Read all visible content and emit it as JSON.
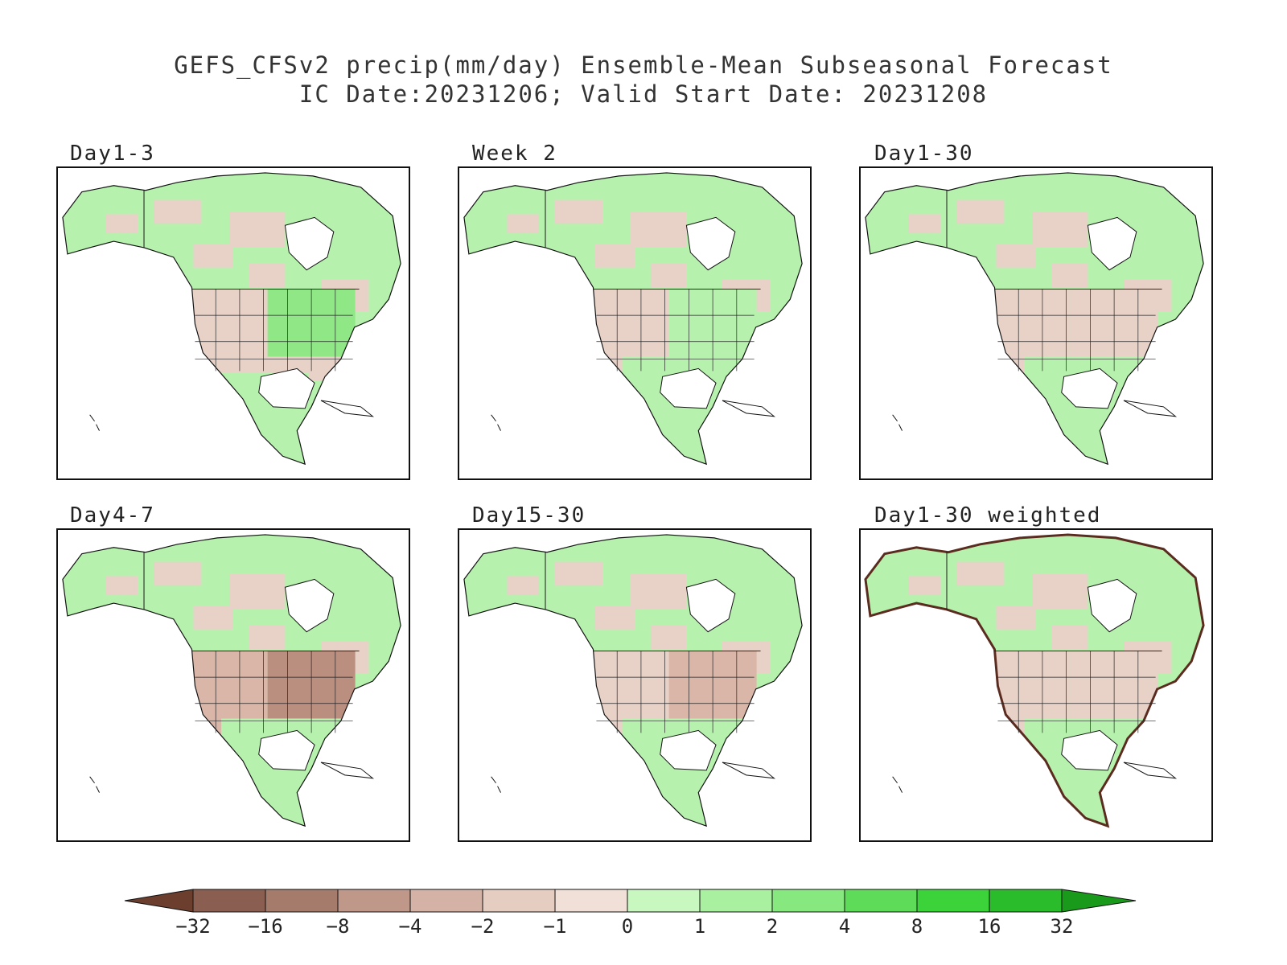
{
  "title": {
    "line1": "GEFS_CFSv2 precip(mm/day) Ensemble-Mean Subseasonal Forecast",
    "line2": "IC Date:20231206; Valid Start Date: 20231208"
  },
  "panels": [
    {
      "label": "Day1-3",
      "pattern": {
        "north": "mixed",
        "west": "brown",
        "east": "green-strong",
        "south": "brown",
        "mexico": "green"
      }
    },
    {
      "label": "Week 2",
      "pattern": {
        "north": "mixed",
        "west": "brown",
        "east": "mixed",
        "south": "green",
        "mexico": "green"
      }
    },
    {
      "label": "Day1-30",
      "pattern": {
        "north": "mixed",
        "west": "brown",
        "east": "brown",
        "south": "green",
        "mexico": "green"
      }
    },
    {
      "label": "Day4-7",
      "pattern": {
        "north": "mixed",
        "west": "brown-strong",
        "east": "brown-dark",
        "south": "green",
        "mexico": "green"
      }
    },
    {
      "label": "Day15-30",
      "pattern": {
        "north": "mixed",
        "west": "brown",
        "east": "brown-strong",
        "south": "green",
        "mexico": "green"
      }
    },
    {
      "label": "Day1-30 weighted",
      "pattern": {
        "north": "mixed",
        "west": "brown",
        "east": "brown",
        "south": "green",
        "mexico": "green",
        "coast_outline": true
      }
    }
  ],
  "colorbar": {
    "ticks": [
      "−32",
      "−16",
      "−8",
      "−4",
      "−2",
      "−1",
      "0",
      "1",
      "2",
      "4",
      "8",
      "16",
      "32"
    ],
    "colors": [
      "#6b3e2e",
      "#8a5e50",
      "#a57b6c",
      "#bf988a",
      "#d4b3a6",
      "#e6cdc2",
      "#f1e0d8",
      "#c9f7c0",
      "#a9f0a0",
      "#86e87e",
      "#5edb58",
      "#3cd23a",
      "#2bbc2b",
      "#1a9a1a"
    ]
  }
}
